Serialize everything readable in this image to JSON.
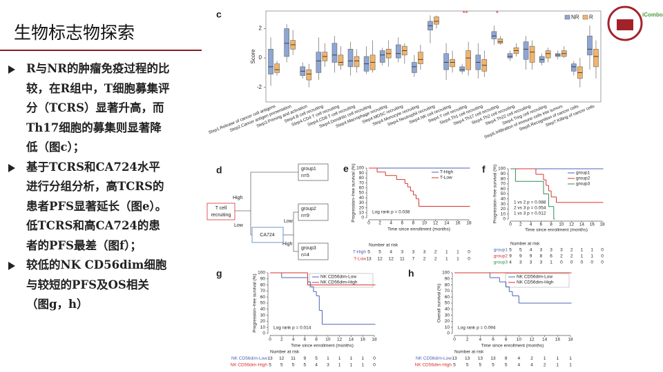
{
  "header": {
    "title": "生物标志物探索"
  },
  "bullets": [
    "R与NR的肿瘤免疫过程的比较，在R组中，T细胞募集评分（TCRS）显著升高，而Th17细胞的募集则显著降低（图c）；",
    "基于TCRS和CA724水平进行分组分析，高TCRS的患者PFS显著延长（图e）。低TCRS和高CA724的患者的PFS最差（图f）；",
    "较低的NK CD56dim细胞与较短的PFS及OS相关（图g，h）"
  ],
  "logo": {
    "text": "iCombo"
  },
  "diagram": {
    "label": "d",
    "nodes": [
      {
        "lines": [
          "T cell",
          "recruiting"
        ]
      },
      {
        "lines": [
          "CA724"
        ]
      },
      {
        "lines": [
          "group1",
          "n=5"
        ]
      },
      {
        "lines": [
          "group2",
          "n=9"
        ]
      },
      {
        "lines": [
          "group3",
          "n=4"
        ]
      }
    ],
    "edges": [
      "High",
      "Low",
      "Low",
      "High"
    ]
  },
  "chart_data": [
    {
      "type": "box",
      "label": "c",
      "ylabel": "Score",
      "ylim": [
        -3,
        3.2
      ],
      "yticks": [
        -2,
        0,
        2
      ],
      "legend": "upper right",
      "categories": [
        "Step1.Release of cancer cell antigens",
        "Step2.Cancer antigen presentation",
        "Step3.Priming and activation",
        "Step4.B cell recruiting",
        "Step4.CD4 T cell recruiting",
        "Step4.CD8 T cell recruiting",
        "Step4.Dendritic cell recruiting",
        "Step4.Macrophage recruiting",
        "Step4.MDSC recruiting",
        "Step4.Monocyte recruiting",
        "Step4.Neutrophil recruiting",
        "Step4.NK cell recruiting",
        "Step4.T cell recruiting",
        "Step4.Th1 cell recruiting",
        "Step4.Th17 cell recruiting",
        "Step4.Th2 cell recruiting",
        "Step4.Th22 cell recruiting",
        "Step4.Treg cell recruiting",
        "Step5.Infiltration of immune cells into tumors",
        "Step6.Recognition of cancer cells",
        "Step7.Killing of cancer cells"
      ],
      "annotations": [
        {
          "text": "**",
          "category": 12
        },
        {
          "text": "*",
          "category": 14
        }
      ],
      "series": [
        {
          "name": "NR",
          "color": "#8ea6d4",
          "values": [
            [
              -1.9,
              -1.1,
              -0.6,
              0.6,
              1.4
            ],
            [
              -0.3,
              0.1,
              1.0,
              2.0,
              2.3
            ],
            [
              -1.4,
              -1.2,
              -0.9,
              -0.6,
              -0.3
            ],
            [
              -1.5,
              -1.0,
              -0.2,
              0.4,
              1.4
            ],
            [
              -1.0,
              -0.3,
              0.2,
              1.0,
              1.5
            ],
            [
              -1.2,
              -0.6,
              -0.2,
              0.6,
              1.1
            ],
            [
              -1.1,
              -0.9,
              -0.4,
              0.1,
              0.8
            ],
            [
              -0.5,
              -0.3,
              0.2,
              0.5,
              0.7
            ],
            [
              -0.3,
              0,
              0.3,
              0.9,
              1.4
            ],
            [
              -1.3,
              -1.0,
              -0.6,
              -0.3,
              0.2
            ],
            [
              1.0,
              1.9,
              2.2,
              2.5,
              2.9
            ],
            [
              -1.5,
              -0.8,
              -0.3,
              0.3,
              1.0
            ],
            [
              -1.1,
              -0.9,
              -0.8,
              -0.6,
              -0.4
            ],
            [
              -1.4,
              -0.8,
              -0.3,
              0.2,
              1.0
            ],
            [
              0.9,
              1.3,
              1.5,
              1.8,
              2.2
            ],
            [
              -0.2,
              0,
              0.1,
              0.3,
              0.5
            ],
            [
              -0.8,
              -0.1,
              0.6,
              1.1,
              1.5
            ],
            [
              -0.5,
              -0.3,
              -0.1,
              0.1,
              0.3
            ],
            [
              -0.1,
              0.1,
              0.2,
              0.3,
              0.5
            ],
            [
              -1.2,
              -0.9,
              -0.6,
              -0.4,
              -0.2
            ],
            [
              -0.8,
              0.2,
              0.6,
              1.5,
              2.2
            ]
          ]
        },
        {
          "name": "R",
          "color": "#f2b46a",
          "values": [
            [
              -1.2,
              -1.0,
              -0.8,
              -0.4,
              -0.2
            ],
            [
              0.2,
              0.6,
              0.9,
              1.2,
              1.9
            ],
            [
              -2.0,
              -1.5,
              -1.1,
              -0.8,
              -0.4
            ],
            [
              -0.6,
              -0.2,
              0.1,
              0.4,
              1.0
            ],
            [
              -0.8,
              -0.5,
              -0.3,
              0.2,
              0.8
            ],
            [
              -1.0,
              -0.6,
              -0.2,
              0.1,
              0.6
            ],
            [
              -1.0,
              -0.8,
              -0.3,
              0.2,
              1.2
            ],
            [
              -0.6,
              0,
              0.3,
              0.6,
              1.2
            ],
            [
              -0.4,
              0.2,
              0.5,
              0.8,
              1.0
            ],
            [
              -0.8,
              -0.4,
              -0.1,
              0.4,
              0.9
            ],
            [
              2.0,
              2.3,
              2.5,
              2.8,
              2.9
            ],
            [
              -1.0,
              -0.6,
              -0.3,
              -0.1,
              0.5
            ],
            [
              -1.2,
              -0.8,
              0,
              0.5,
              1.1
            ],
            [
              -1.3,
              -0.9,
              -0.5,
              -0.1,
              0.5
            ],
            [
              0.9,
              1.0,
              1.1,
              1.3,
              1.5
            ],
            [
              0.1,
              0.3,
              0.5,
              0.7,
              1.0
            ],
            [
              -0.8,
              -0.3,
              0.4,
              0.8,
              1.2
            ],
            [
              -0.3,
              0,
              0.3,
              0.5,
              0.7
            ],
            [
              0,
              0.1,
              0.3,
              0.5,
              0.8
            ],
            [
              -2.0,
              -1.4,
              -1.0,
              -0.6,
              0
            ],
            [
              -1.4,
              -0.6,
              0.1,
              0.6,
              1.2
            ]
          ]
        }
      ]
    },
    {
      "type": "line",
      "step": true,
      "label": "e",
      "ylabel": "Progression−free survival (%)",
      "xlabel": "Time since enrollment (months)",
      "xlim": [
        0,
        18
      ],
      "xticks": [
        0,
        2,
        4,
        6,
        8,
        10,
        12,
        14,
        16,
        18
      ],
      "ylim": [
        0,
        100
      ],
      "yticks": [
        0,
        10,
        20,
        30,
        40,
        50,
        60,
        70,
        80,
        90,
        100
      ],
      "legend": "upper right",
      "annotations": [
        "Log rank p = 0.038"
      ],
      "risk_title": "Number at risk",
      "series": [
        {
          "name": "T-High",
          "color": "#4a63b8",
          "x": [
            0,
            18
          ],
          "values": [
            100,
            100
          ],
          "at_risk": [
            5,
            5,
            4,
            3,
            3,
            3,
            2,
            1,
            1,
            0
          ]
        },
        {
          "name": "T-Low",
          "color": "#d9302c",
          "x": [
            0,
            1.5,
            3,
            5,
            6.5,
            7,
            7.5,
            8,
            8.5,
            9,
            18
          ],
          "values": [
            100,
            92,
            85,
            77,
            69,
            62,
            54,
            46,
            38,
            23,
            23
          ],
          "at_risk": [
            13,
            12,
            12,
            11,
            7,
            2,
            2,
            1,
            1,
            0
          ]
        }
      ]
    },
    {
      "type": "line",
      "step": true,
      "label": "f",
      "ylabel": "Progression−free survival (%)",
      "xlabel": "Time since enrollment (months)",
      "xlim": [
        0,
        18
      ],
      "xticks": [
        0,
        2,
        4,
        6,
        8,
        10,
        12,
        14,
        16,
        18
      ],
      "ylim": [
        0,
        100
      ],
      "yticks": [
        0,
        10,
        20,
        30,
        40,
        50,
        60,
        70,
        80,
        90,
        100
      ],
      "legend": "upper right",
      "annotations": [
        "1 vs 2 p = 0.088",
        "2 vs 3 p = 0.054",
        "1 vs 3 p = 0.012"
      ],
      "risk_title": "Number at risk",
      "series": [
        {
          "name": "group1",
          "color": "#4a63b8",
          "x": [
            0,
            18
          ],
          "values": [
            100,
            100
          ],
          "at_risk": [
            5,
            5,
            4,
            3,
            3,
            3,
            2,
            1,
            1,
            0
          ]
        },
        {
          "name": "group2",
          "color": "#d9302c",
          "x": [
            0,
            5,
            6.5,
            7,
            7.5,
            8,
            9,
            18
          ],
          "values": [
            100,
            89,
            78,
            67,
            56,
            44,
            33,
            33
          ],
          "at_risk": [
            9,
            9,
            9,
            8,
            6,
            2,
            2,
            1,
            1,
            0
          ]
        },
        {
          "name": "group3",
          "color": "#2e8b57",
          "x": [
            0,
            1,
            6.5,
            7.5,
            8.5
          ],
          "values": [
            100,
            75,
            50,
            25,
            0
          ],
          "at_risk": [
            4,
            3,
            3,
            3,
            1,
            0,
            0,
            0,
            0,
            0
          ]
        }
      ]
    },
    {
      "type": "line",
      "step": true,
      "label": "g",
      "ylabel": "Progression−free survival (%)",
      "xlabel": "Time since enrollment (months)",
      "xlim": [
        0,
        18
      ],
      "xticks": [
        0,
        2,
        4,
        6,
        8,
        10,
        12,
        14,
        16,
        18
      ],
      "ylim": [
        0,
        100
      ],
      "yticks": [
        0,
        10,
        20,
        30,
        40,
        50,
        60,
        70,
        80,
        90,
        100
      ],
      "legend": "upper right",
      "annotations": [
        "Log rank p = 0.014"
      ],
      "risk_title": "Number at risk",
      "series": [
        {
          "name": "NK CD56dim-Low",
          "color": "#4a63b8",
          "x": [
            0,
            2,
            6.5,
            7,
            7.5,
            8,
            8.5,
            9,
            18
          ],
          "values": [
            100,
            92,
            85,
            77,
            69,
            62,
            38,
            15,
            15
          ],
          "at_risk": [
            13,
            12,
            11,
            9,
            5,
            1,
            1,
            1,
            1,
            0
          ]
        },
        {
          "name": "NK CD56dim-High",
          "color": "#d9302c",
          "x": [
            0,
            6.5,
            18
          ],
          "values": [
            100,
            80,
            80
          ],
          "at_risk": [
            5,
            5,
            5,
            5,
            4,
            3,
            1,
            1,
            1,
            0
          ]
        }
      ]
    },
    {
      "type": "line",
      "step": true,
      "label": "h",
      "ylabel": "Overall survival (%)",
      "xlabel": "Time since enrollment (months)",
      "xlim": [
        0,
        18
      ],
      "xticks": [
        0,
        2,
        4,
        6,
        8,
        10,
        12,
        14,
        16,
        18
      ],
      "ylim": [
        0,
        100
      ],
      "yticks": [
        0,
        10,
        20,
        30,
        40,
        50,
        60,
        70,
        80,
        90,
        100
      ],
      "legend": "upper right",
      "annotations": [
        "Log rank p = 0.094"
      ],
      "risk_title": "Number at risk",
      "series": [
        {
          "name": "NK CD56dim-Low",
          "color": "#4a63b8",
          "x": [
            0,
            5.5,
            7,
            8,
            8.5,
            9,
            10,
            18
          ],
          "values": [
            100,
            92,
            85,
            77,
            69,
            62,
            50,
            50
          ],
          "at_risk": [
            13,
            13,
            13,
            13,
            8,
            4,
            2,
            1,
            1,
            1
          ]
        },
        {
          "name": "NK CD56dim-High",
          "color": "#d9302c",
          "x": [
            0,
            18
          ],
          "values": [
            100,
            100
          ],
          "at_risk": [
            5,
            5,
            5,
            5,
            5,
            4,
            4,
            2,
            1,
            1
          ]
        }
      ]
    }
  ]
}
